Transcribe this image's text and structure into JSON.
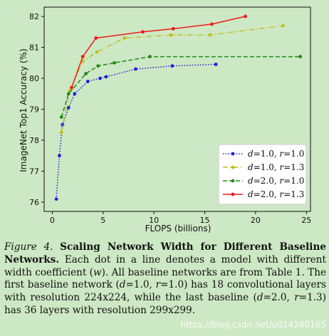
{
  "chart_data": {
    "type": "line",
    "xlabel": "FLOPS (billions)",
    "ylabel": "ImageNet Top1 Accuracy (%)",
    "xlim": [
      -0.8,
      25.4
    ],
    "ylim": [
      75.7,
      82.3
    ],
    "xticks": [
      0,
      5,
      10,
      15,
      20,
      25
    ],
    "yticks": [
      76,
      77,
      78,
      79,
      80,
      81,
      82
    ],
    "legend_position": "bottom-right",
    "series": [
      {
        "name": "d=1.0, r=1.0",
        "legend": {
          "d": "d",
          "dv": "=1.0, ",
          "r": "r",
          "rv": "=1.0"
        },
        "color": "#1f1fe0",
        "style": "dotted",
        "x": [
          0.4,
          0.7,
          1.0,
          1.6,
          2.2,
          3.5,
          4.7,
          5.3,
          8.2,
          11.8,
          16.1
        ],
        "y": [
          76.1,
          77.5,
          78.5,
          79.05,
          79.5,
          79.9,
          80.0,
          80.05,
          80.3,
          80.4,
          80.45
        ]
      },
      {
        "name": "d=1.0, r=1.3",
        "legend": {
          "d": "d",
          "dv": "=1.0, ",
          "r": "r",
          "rv": "=1.3"
        },
        "color": "#bfbf1f",
        "style": "dashdot",
        "x": [
          0.9,
          1.7,
          3.0,
          4.4,
          7.1,
          11.7,
          15.5,
          22.7
        ],
        "y": [
          78.25,
          79.6,
          80.55,
          80.85,
          81.3,
          81.4,
          81.4,
          81.7
        ]
      },
      {
        "name": "d=2.0, r=1.0",
        "legend": {
          "d": "d",
          "dv": "=2.0, ",
          "r": "r",
          "rv": "=1.0"
        },
        "color": "#1f8a1f",
        "style": "dashed",
        "x": [
          0.9,
          1.6,
          3.3,
          4.5,
          6.1,
          9.6,
          24.4
        ],
        "y": [
          78.75,
          79.5,
          80.15,
          80.4,
          80.5,
          80.7,
          80.7
        ]
      },
      {
        "name": "d=2.0, r=1.3",
        "legend": {
          "d": "d",
          "dv": "=2.0, ",
          "r": "r",
          "rv": "=1.3"
        },
        "color": "#ee1a1a",
        "style": "solid",
        "x": [
          1.9,
          3.0,
          4.3,
          8.9,
          11.9,
          15.7,
          19.0
        ],
        "y": [
          79.7,
          80.7,
          81.3,
          81.5,
          81.6,
          81.75,
          82.0
        ]
      }
    ]
  },
  "caption": {
    "figure_label": "Figure 4.",
    "title": "Scaling Network Width for Different Baseline Networks.",
    "p1": " Each dot in a line denotes a model with different width coefficient (",
    "w": "w",
    "p2": "). All baseline networks are from Table 1. The first baseline network (",
    "d1": "d",
    "p3": "=1.0, ",
    "r1": "r",
    "p4": "=1.0) has 18 convolutional layers with resolution 224x224, while the last baseline (",
    "d2": "d",
    "p5": "=2.0, ",
    "r2": "r",
    "p6": "=1.3) has 36 layers with resolution 299x299."
  },
  "watermark": "https://blog.csdn.net/u014380165"
}
